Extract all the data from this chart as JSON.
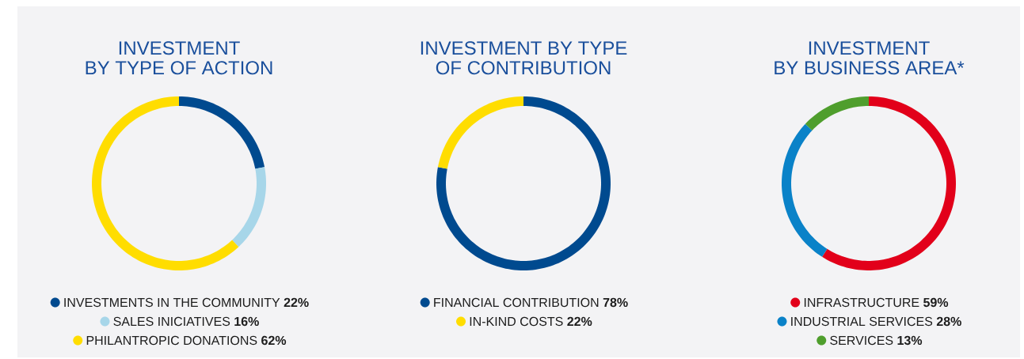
{
  "chart_data": [
    {
      "type": "donut",
      "title": "INVESTMENT",
      "subtitle": "BY TYPE OF ACTION",
      "categories": [
        "INVESTMENTS IN THE COMMUNITY",
        "SALES INICIATIVES",
        "PHILANTROPIC DONATIONS"
      ],
      "values": [
        22,
        16,
        62
      ],
      "value_labels": [
        "22%",
        "16%",
        "62%"
      ],
      "colors": [
        "#004a8f",
        "#a7d6e9",
        "#ffdd00"
      ],
      "legend": "bottom"
    },
    {
      "type": "donut",
      "title": "INVESTMENT BY TYPE",
      "subtitle": "OF CONTRIBUTION",
      "categories": [
        "FINANCIAL CONTRIBUTION",
        "IN-KIND COSTS"
      ],
      "values": [
        78,
        22
      ],
      "value_labels": [
        "78%",
        "22%"
      ],
      "colors": [
        "#004a8f",
        "#ffdd00"
      ],
      "legend": "bottom"
    },
    {
      "type": "donut",
      "title": "INVESTMENT",
      "subtitle": "BY BUSINESS AREA*",
      "categories": [
        "INFRASTRUCTURE",
        "INDUSTRIAL SERVICES",
        "SERVICES"
      ],
      "values": [
        59,
        28,
        13
      ],
      "value_labels": [
        "59%",
        "28%",
        "13%"
      ],
      "colors": [
        "#e2001a",
        "#0a82c8",
        "#4f9e2d"
      ],
      "legend": "bottom"
    }
  ]
}
